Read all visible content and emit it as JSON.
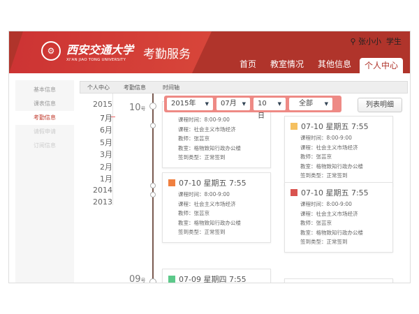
{
  "header": {
    "logo_cn": "西安交通大学",
    "logo_en": "XI'AN JIAO TONG UNIVERSITY",
    "system": "考勤服务",
    "user": "张小小",
    "role": "学生",
    "nav": [
      {
        "label": "首页"
      },
      {
        "label": "教室情况"
      },
      {
        "label": "其他信息"
      },
      {
        "label": "个人中心",
        "active": true
      }
    ]
  },
  "sidebar": {
    "items": [
      {
        "label": "基本信息"
      },
      {
        "label": "课表信息"
      },
      {
        "label": "考勤信息",
        "active": true
      },
      {
        "label": "请假申请"
      },
      {
        "label": "订阅信息"
      }
    ]
  },
  "breadcrumb": [
    "个人中心",
    "考勤信息",
    "时间轴"
  ],
  "years": [
    "2015",
    "7月",
    "6月",
    "5月",
    "3月",
    "2月",
    "1月",
    "2014",
    "2013"
  ],
  "days": [
    {
      "num": "10",
      "unit": "号"
    },
    {
      "num": "09",
      "unit": "号"
    }
  ],
  "filter": {
    "year": "2015年",
    "month": "07月",
    "day": "10日",
    "type": "全部"
  },
  "list_button": "列表明细",
  "colors": {
    "primary": "#b0342b",
    "filter": "#ee8a85",
    "icon_orange": "#f08040",
    "icon_yellow": "#f5c060",
    "icon_red": "#d9534f",
    "icon_green": "#5cc98a"
  },
  "cards": [
    {
      "title": "",
      "lines": [
        "课程时间：8:00-9:00",
        "课程：社会主义市场经济",
        "教师：张芸京",
        "教室：格物致知行政办公楼",
        "签到类型：正常签到"
      ]
    },
    {
      "title": "07-10 星期五 7:55",
      "lines": [
        "课程时间：8:00-9:00",
        "课程：社会主义市场经济",
        "教师：张芸京",
        "教室：格物致知行政办公楼",
        "签到类型：正常签到"
      ]
    },
    {
      "title": "07-10 星期五 7:55",
      "lines": [
        "课程时间：8:00-9:00",
        "课程：社会主义市场经济",
        "教师：张芸京",
        "教室：格物致知行政办公楼",
        "签到类型：正常签到"
      ]
    },
    {
      "title": "07-10 星期五 7:55",
      "lines": [
        "课程时间：8:00-9:00",
        "课程：社会主义市场经济",
        "教师：张芸京",
        "教室：格物致知行政办公楼",
        "签到类型：正常签到"
      ]
    },
    {
      "title": "07-09 星期四 7:55",
      "lines": []
    }
  ]
}
